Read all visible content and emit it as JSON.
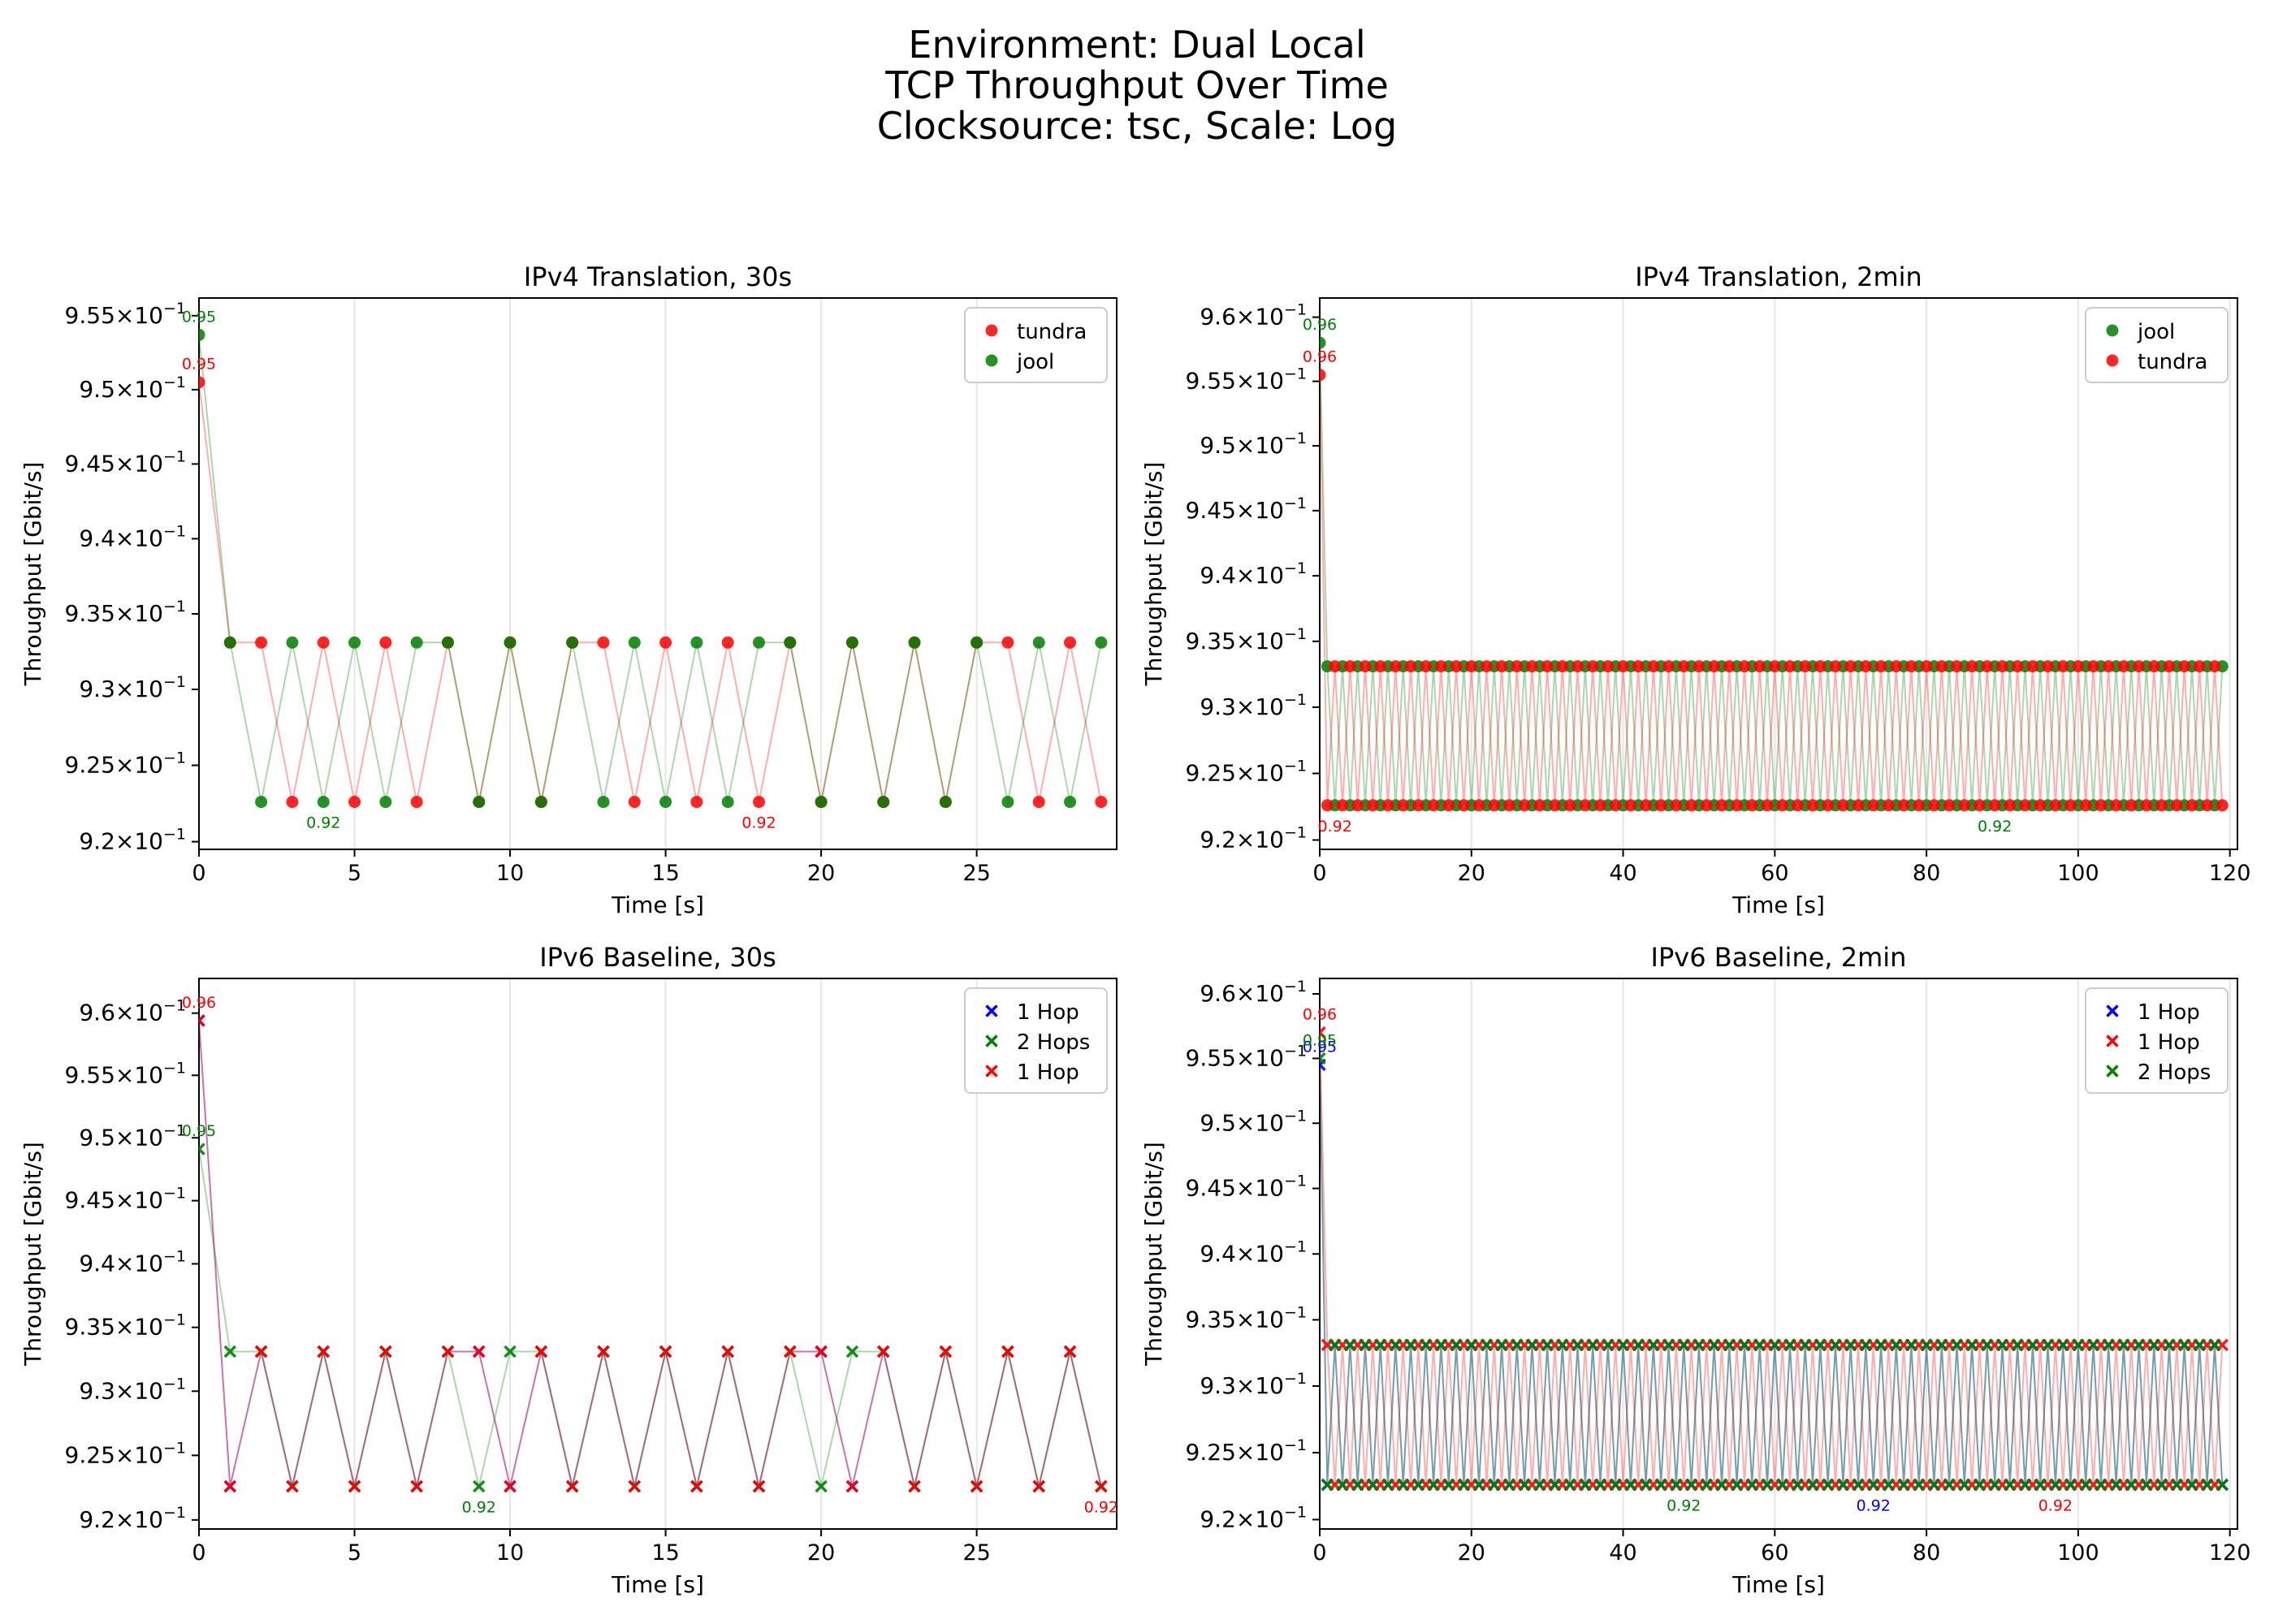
{
  "suptitle": [
    "Environment: Dual Local",
    "TCP Throughput Over Time",
    "Clocksource: tsc, Scale: Log"
  ],
  "colors": {
    "red": "#ff0000",
    "green": "#007f00",
    "blue": "#0000ff",
    "grid": "#e6e6e6"
  },
  "chart_data": [
    {
      "type": "line",
      "title": "IPv4 Translation, 30s",
      "xlabel": "Time [s]",
      "ylabel": "Throughput [Gbit/s]",
      "xlim": [
        0,
        29.5
      ],
      "xticks": [
        0,
        5,
        10,
        15,
        20,
        25
      ],
      "ylim": [
        0.9195,
        0.9562
      ],
      "yticks": [
        {
          "v": 0.92,
          "m": "9.2"
        },
        {
          "v": 0.925,
          "m": "9.25"
        },
        {
          "v": 0.93,
          "m": "9.3"
        },
        {
          "v": 0.935,
          "m": "9.35"
        },
        {
          "v": 0.94,
          "m": "9.4"
        },
        {
          "v": 0.945,
          "m": "9.45"
        },
        {
          "v": 0.95,
          "m": "9.5"
        },
        {
          "v": 0.955,
          "m": "9.55"
        }
      ],
      "scale": "log",
      "grid": "x",
      "legend": "upper right",
      "marker": "circle",
      "series": [
        {
          "name": "tundra",
          "color": "#ff0000",
          "x0": 0,
          "values": [
            0.9505,
            0.9331,
            0.9331,
            0.9226,
            0.9331,
            0.9226,
            0.9331,
            0.9226,
            0.9331,
            0.9226,
            0.9331,
            0.9226,
            0.9331,
            0.9331,
            0.9226,
            0.9331,
            0.9226,
            0.9331,
            0.9226,
            0.9331,
            0.9226,
            0.9331,
            0.9226,
            0.9331,
            0.9226,
            0.9331,
            0.9331,
            0.9226,
            0.9331,
            0.9226
          ],
          "annotations": [
            {
              "x": 0,
              "y": 0.9505,
              "text": "0.95",
              "pos": "above"
            },
            {
              "x": 18,
              "y": 0.9226,
              "text": "0.92",
              "pos": "below"
            }
          ]
        },
        {
          "name": "jool",
          "color": "#007f00",
          "x0": 0,
          "values": [
            0.9537,
            0.9331,
            0.9226,
            0.9331,
            0.9226,
            0.9331,
            0.9226,
            0.9331,
            0.9331,
            0.9226,
            0.9331,
            0.9226,
            0.9331,
            0.9226,
            0.9331,
            0.9226,
            0.9331,
            0.9226,
            0.9331,
            0.9331,
            0.9226,
            0.9331,
            0.9226,
            0.9331,
            0.9226,
            0.9331,
            0.9226,
            0.9331,
            0.9226,
            0.9331
          ],
          "annotations": [
            {
              "x": 0,
              "y": 0.9537,
              "text": "0.95",
              "pos": "above"
            },
            {
              "x": 4,
              "y": 0.9226,
              "text": "0.92",
              "pos": "below"
            }
          ]
        }
      ]
    },
    {
      "type": "line",
      "title": "IPv4 Translation, 2min",
      "xlabel": "Time [s]",
      "ylabel": "Throughput [Gbit/s]",
      "xlim": [
        0,
        121
      ],
      "xticks": [
        0,
        20,
        40,
        60,
        80,
        100,
        120
      ],
      "ylim": [
        0.9193,
        0.9615
      ],
      "yticks": [
        {
          "v": 0.92,
          "m": "9.2"
        },
        {
          "v": 0.925,
          "m": "9.25"
        },
        {
          "v": 0.93,
          "m": "9.3"
        },
        {
          "v": 0.935,
          "m": "9.35"
        },
        {
          "v": 0.94,
          "m": "9.4"
        },
        {
          "v": 0.945,
          "m": "9.45"
        },
        {
          "v": 0.95,
          "m": "9.5"
        },
        {
          "v": 0.955,
          "m": "9.55"
        },
        {
          "v": 0.96,
          "m": "9.6"
        }
      ],
      "scale": "log",
      "grid": "x",
      "legend": "upper right",
      "marker": "circle",
      "series": [
        {
          "name": "jool",
          "color": "#007f00",
          "x0": 0,
          "first": 0.958,
          "pattern": "alt",
          "low": 0.9226,
          "high": 0.9331,
          "n": 120,
          "phase": 0,
          "annotations": [
            {
              "x": 0,
              "y": 0.958,
              "text": "0.96",
              "pos": "above"
            },
            {
              "x": 89,
              "y": 0.9226,
              "text": "0.92",
              "pos": "below"
            }
          ]
        },
        {
          "name": "tundra",
          "color": "#ff0000",
          "x0": 0,
          "first": 0.9555,
          "pattern": "alt",
          "low": 0.9226,
          "high": 0.9331,
          "n": 120,
          "phase": 1,
          "annotations": [
            {
              "x": 0,
              "y": 0.9555,
              "text": "0.96",
              "pos": "above"
            },
            {
              "x": 2,
              "y": 0.9226,
              "text": "0.92",
              "pos": "below"
            }
          ]
        }
      ]
    },
    {
      "type": "line",
      "title": "IPv6 Baseline, 30s",
      "xlabel": "Time [s]",
      "ylabel": "Throughput [Gbit/s]",
      "xlim": [
        0,
        29.5
      ],
      "xticks": [
        0,
        5,
        10,
        15,
        20,
        25
      ],
      "ylim": [
        0.9193,
        0.9628
      ],
      "yticks": [
        {
          "v": 0.92,
          "m": "9.2"
        },
        {
          "v": 0.925,
          "m": "9.25"
        },
        {
          "v": 0.93,
          "m": "9.3"
        },
        {
          "v": 0.935,
          "m": "9.35"
        },
        {
          "v": 0.94,
          "m": "9.4"
        },
        {
          "v": 0.945,
          "m": "9.45"
        },
        {
          "v": 0.95,
          "m": "9.5"
        },
        {
          "v": 0.955,
          "m": "9.55"
        },
        {
          "v": 0.96,
          "m": "9.6"
        }
      ],
      "scale": "log",
      "grid": "x",
      "legend": "upper right",
      "marker": "x",
      "series": [
        {
          "name": "1 Hop",
          "color": "#0000ff",
          "x0": 0,
          "values": [
            0.9594,
            0.9226,
            0.9331,
            0.9226,
            0.9331,
            0.9226,
            0.9331,
            0.9226,
            0.9331,
            0.9331,
            0.9226,
            0.9331,
            0.9226,
            0.9331,
            0.9226,
            0.9331,
            0.9226,
            0.9331,
            0.9226,
            0.9331,
            0.9331,
            0.9226,
            0.9331,
            0.9226,
            0.9331,
            0.9226,
            0.9331,
            0.9226,
            0.9331,
            0.9226
          ],
          "annotations": []
        },
        {
          "name": "2 Hops",
          "color": "#007f00",
          "x0": 0,
          "values": [
            0.9491,
            0.9331,
            0.9331,
            0.9226,
            0.9331,
            0.9226,
            0.9331,
            0.9226,
            0.9331,
            0.9226,
            0.9331,
            0.9331,
            0.9226,
            0.9331,
            0.9226,
            0.9331,
            0.9226,
            0.9331,
            0.9226,
            0.9331,
            0.9226,
            0.9331,
            0.9331,
            0.9226,
            0.9331,
            0.9226,
            0.9331,
            0.9226,
            0.9331,
            0.9226
          ],
          "annotations": [
            {
              "x": 0,
              "y": 0.9491,
              "text": "0.95",
              "pos": "above"
            },
            {
              "x": 9,
              "y": 0.9226,
              "text": "0.92",
              "pos": "below"
            }
          ]
        },
        {
          "name": "1 Hop",
          "color": "#ff0000",
          "x0": 0,
          "values": [
            0.9594,
            0.9226,
            0.9331,
            0.9226,
            0.9331,
            0.9226,
            0.9331,
            0.9226,
            0.9331,
            0.9331,
            0.9226,
            0.9331,
            0.9226,
            0.9331,
            0.9226,
            0.9331,
            0.9226,
            0.9331,
            0.9226,
            0.9331,
            0.9331,
            0.9226,
            0.9331,
            0.9226,
            0.9331,
            0.9226,
            0.9331,
            0.9226,
            0.9331,
            0.9226
          ],
          "annotations": [
            {
              "x": 0,
              "y": 0.9594,
              "text": "0.96",
              "pos": "above"
            },
            {
              "x": 29,
              "y": 0.9226,
              "text": "0.92",
              "pos": "below"
            }
          ]
        }
      ]
    },
    {
      "type": "line",
      "title": "IPv6 Baseline, 2min",
      "xlabel": "Time [s]",
      "ylabel": "Throughput [Gbit/s]",
      "xlim": [
        0,
        121
      ],
      "xticks": [
        0,
        20,
        40,
        60,
        80,
        100,
        120
      ],
      "ylim": [
        0.9193,
        0.9612
      ],
      "yticks": [
        {
          "v": 0.92,
          "m": "9.2"
        },
        {
          "v": 0.925,
          "m": "9.25"
        },
        {
          "v": 0.93,
          "m": "9.3"
        },
        {
          "v": 0.935,
          "m": "9.35"
        },
        {
          "v": 0.94,
          "m": "9.4"
        },
        {
          "v": 0.945,
          "m": "9.45"
        },
        {
          "v": 0.95,
          "m": "9.5"
        },
        {
          "v": 0.955,
          "m": "9.55"
        },
        {
          "v": 0.96,
          "m": "9.6"
        }
      ],
      "scale": "log",
      "grid": "x",
      "legend": "upper right",
      "marker": "x",
      "series": [
        {
          "name": "1 Hop",
          "color": "#0000ff",
          "x0": 0,
          "first": 0.9545,
          "pattern": "alt",
          "low": 0.9226,
          "high": 0.9331,
          "n": 120,
          "phase": 1,
          "annotations": [
            {
              "x": 0,
              "y": 0.9545,
              "text": "0.95",
              "pos": "above"
            },
            {
              "x": 73,
              "y": 0.9226,
              "text": "0.92",
              "pos": "below"
            }
          ]
        },
        {
          "name": "1 Hop",
          "color": "#ff0000",
          "x0": 0,
          "first": 0.957,
          "pattern": "alt",
          "low": 0.9226,
          "high": 0.9331,
          "n": 120,
          "phase": 0,
          "annotations": [
            {
              "x": 0,
              "y": 0.957,
              "text": "0.96",
              "pos": "above"
            },
            {
              "x": 97,
              "y": 0.9226,
              "text": "0.92",
              "pos": "below"
            }
          ]
        },
        {
          "name": "2 Hops",
          "color": "#007f00",
          "x0": 0,
          "first": 0.955,
          "pattern": "alt",
          "low": 0.9226,
          "high": 0.9331,
          "n": 120,
          "phase": 1,
          "annotations": [
            {
              "x": 0,
              "y": 0.955,
              "text": "0.95",
              "pos": "above"
            },
            {
              "x": 48,
              "y": 0.9226,
              "text": "0.92",
              "pos": "below"
            }
          ]
        }
      ]
    }
  ]
}
